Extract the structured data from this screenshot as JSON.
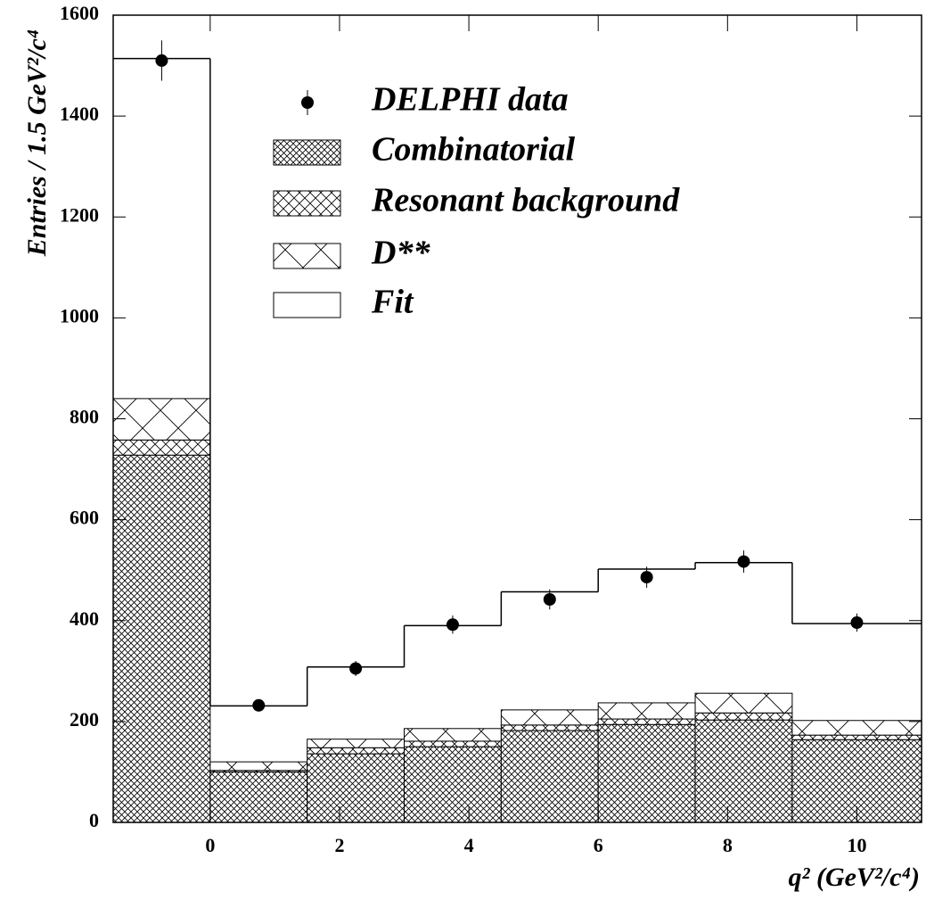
{
  "chart_data": {
    "type": "histogram",
    "x_label": "q² (GeV²/c⁴)",
    "y_label": "Entries / 1.5 GeV²/c⁴",
    "bins": [
      -1.5,
      0,
      1.5,
      3,
      4.5,
      6,
      7.5,
      9,
      11
    ],
    "series": [
      {
        "name": "Combinatorial",
        "values": [
          728,
          100,
          136,
          150,
          182,
          194,
          203,
          164
        ]
      },
      {
        "name": "Resonant background",
        "values": [
          30,
          3,
          12,
          11,
          11,
          11,
          14,
          9
        ]
      },
      {
        "name": "D**",
        "values": [
          82,
          17,
          17,
          25,
          30,
          32,
          39,
          29
        ]
      }
    ],
    "fit": {
      "name": "Fit",
      "values": [
        1514,
        231,
        308,
        390,
        457,
        502,
        515,
        394
      ]
    },
    "data": {
      "name": "DELPHI data",
      "x": [
        -0.75,
        0.75,
        2.25,
        3.75,
        5.25,
        6.75,
        8.25,
        10
      ],
      "values": [
        1510,
        232,
        305,
        392,
        442,
        486,
        517,
        396
      ],
      "errors": [
        40,
        12,
        15,
        18,
        20,
        21,
        22,
        18
      ]
    },
    "xlim": [
      -1.5,
      11
    ],
    "xticks": [
      0,
      2,
      4,
      6,
      8,
      10
    ],
    "ylim": [
      0,
      1600
    ],
    "yticks": [
      0,
      200,
      400,
      600,
      800,
      1000,
      1200,
      1400,
      1600
    ]
  }
}
